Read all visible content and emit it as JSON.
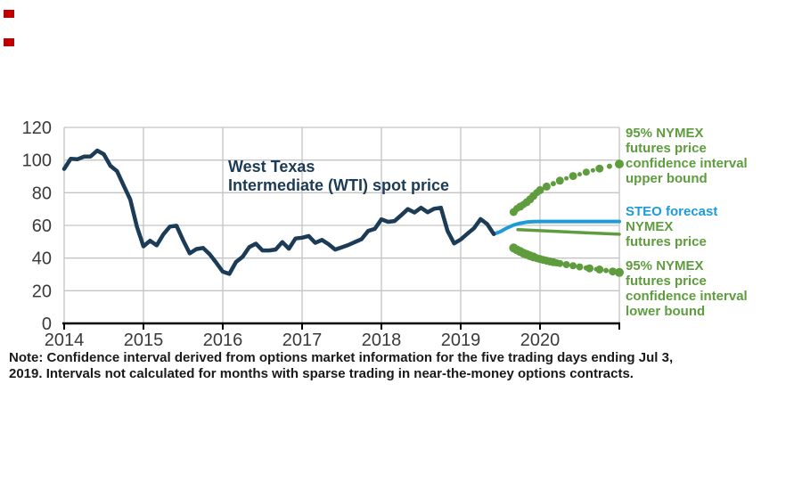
{
  "theme": {
    "navy": "#1B3B57",
    "blue": "#1E9BD7",
    "green": "#5E9C3D",
    "grid": "#C4C4C4",
    "axis": "#000000",
    "tick_text": "#3A3A3A",
    "red_mark": "#C00000",
    "background": "#FFFFFF"
  },
  "note": {
    "text": "Note: Confidence interval derived from options market information for the five trading days ending Jul 3,\n2019. Intervals not calculated for months with sparse trading in near-the-money options contracts."
  },
  "chart_data": {
    "type": "line",
    "annotation": "West Texas\nIntermediate (WTI) spot price",
    "ylim": [
      0,
      120
    ],
    "yticks": [
      0,
      20,
      40,
      60,
      80,
      100,
      120
    ],
    "xticks": [
      2014,
      2015,
      2016,
      2017,
      2018,
      2019,
      2020
    ],
    "x_range": [
      2014,
      2021
    ],
    "grid": true,
    "legend_position": "right",
    "labels": {
      "upper_bound": "95% NYMEX\nfutures price\nconfidence interval\nupper bound",
      "steo": "STEO forecast",
      "nymex": "NYMEX\nfutures price",
      "lower_bound": "95% NYMEX\nfutures price\nconfidence interval\nlower bound"
    },
    "series": [
      {
        "name": "95% NYMEX futures price confidence interval upper bound",
        "type": "dots",
        "color_key": "green",
        "dots": [
          [
            2019.667,
            68.2,
            4.5
          ],
          [
            2019.708,
            70.3,
            4.0
          ],
          [
            2019.75,
            71.5,
            4.5
          ],
          [
            2019.792,
            72.8,
            4.0
          ],
          [
            2019.833,
            74.2,
            4.5
          ],
          [
            2019.875,
            76.0,
            4.5
          ],
          [
            2019.917,
            78.0,
            4.5
          ],
          [
            2019.958,
            80.0,
            4.0
          ],
          [
            2020.0,
            81.6,
            4.5
          ],
          [
            2020.083,
            83.8,
            4.5
          ],
          [
            2020.167,
            85.6,
            3.0
          ],
          [
            2020.25,
            87.4,
            4.5
          ],
          [
            2020.333,
            88.8,
            2.5
          ],
          [
            2020.417,
            90.2,
            4.5
          ],
          [
            2020.5,
            91.3,
            2.5
          ],
          [
            2020.583,
            92.6,
            4.0
          ],
          [
            2020.667,
            93.7,
            2.5
          ],
          [
            2020.75,
            94.8,
            4.5
          ],
          [
            2020.875,
            96.2,
            3.0
          ],
          [
            2021.0,
            97.6,
            5.0
          ]
        ]
      },
      {
        "name": "95% NYMEX futures price confidence interval lower bound",
        "type": "dots",
        "color_key": "green",
        "dots": [
          [
            2019.667,
            46.2,
            5.0
          ],
          [
            2019.708,
            45.0,
            5.0
          ],
          [
            2019.75,
            44.0,
            5.0
          ],
          [
            2019.792,
            43.0,
            5.0
          ],
          [
            2019.833,
            42.2,
            5.0
          ],
          [
            2019.875,
            41.4,
            5.0
          ],
          [
            2019.917,
            40.7,
            5.0
          ],
          [
            2019.958,
            40.0,
            4.5
          ],
          [
            2020.0,
            39.4,
            4.5
          ],
          [
            2020.042,
            38.9,
            4.5
          ],
          [
            2020.083,
            38.4,
            4.5
          ],
          [
            2020.125,
            37.9,
            4.5
          ],
          [
            2020.167,
            37.5,
            4.5
          ],
          [
            2020.208,
            37.1,
            4.0
          ],
          [
            2020.25,
            36.7,
            4.0
          ],
          [
            2020.333,
            36.0,
            4.0
          ],
          [
            2020.417,
            35.3,
            4.0
          ],
          [
            2020.5,
            34.6,
            4.0
          ],
          [
            2020.583,
            34.0,
            3.0
          ],
          [
            2020.625,
            33.7,
            4.5
          ],
          [
            2020.708,
            33.2,
            2.5
          ],
          [
            2020.75,
            33.0,
            4.5
          ],
          [
            2020.833,
            32.4,
            3.0
          ],
          [
            2020.917,
            31.8,
            4.5
          ],
          [
            2021.0,
            31.2,
            5.0
          ]
        ]
      },
      {
        "name": "NYMEX futures price",
        "type": "line",
        "color_key": "green",
        "width": 3.5,
        "points": [
          [
            2019.72,
            57.4
          ],
          [
            2020.0,
            56.8
          ],
          [
            2020.3,
            56.1
          ],
          [
            2020.6,
            55.4
          ],
          [
            2021.0,
            54.6
          ]
        ]
      },
      {
        "name": "STEO forecast",
        "type": "line",
        "color_key": "blue",
        "width": 4,
        "points": [
          [
            2019.417,
            54.7
          ],
          [
            2019.5,
            56.2
          ],
          [
            2019.583,
            58.4
          ],
          [
            2019.667,
            60.2
          ],
          [
            2019.75,
            61.3
          ],
          [
            2019.833,
            62.0
          ],
          [
            2019.917,
            62.3
          ],
          [
            2020.0,
            62.4
          ],
          [
            2021.0,
            62.4
          ]
        ]
      },
      {
        "name": "West Texas Intermediate (WTI) spot price",
        "type": "line",
        "color_key": "navy",
        "width": 4.5,
        "x_start": 2014.0,
        "x_step_months": 1,
        "values": [
          94.6,
          100.8,
          100.5,
          102.1,
          102.2,
          105.8,
          103.6,
          96.5,
          93.2,
          84.4,
          75.8,
          59.3,
          47.2,
          50.6,
          47.8,
          54.5,
          59.3,
          59.8,
          50.9,
          42.9,
          45.5,
          46.2,
          42.4,
          37.2,
          31.7,
          30.3,
          37.6,
          40.8,
          46.7,
          48.8,
          44.7,
          44.7,
          45.2,
          49.8,
          45.7,
          52.0,
          52.5,
          53.5,
          49.3,
          51.1,
          48.5,
          45.2,
          46.6,
          48.0,
          49.8,
          51.6,
          56.6,
          57.9,
          63.7,
          62.2,
          62.7,
          66.3,
          70.0,
          67.9,
          70.8,
          68.1,
          70.2,
          70.8,
          56.7,
          49.0,
          51.4,
          54.9,
          58.2,
          63.9,
          60.8,
          54.7
        ]
      }
    ]
  }
}
